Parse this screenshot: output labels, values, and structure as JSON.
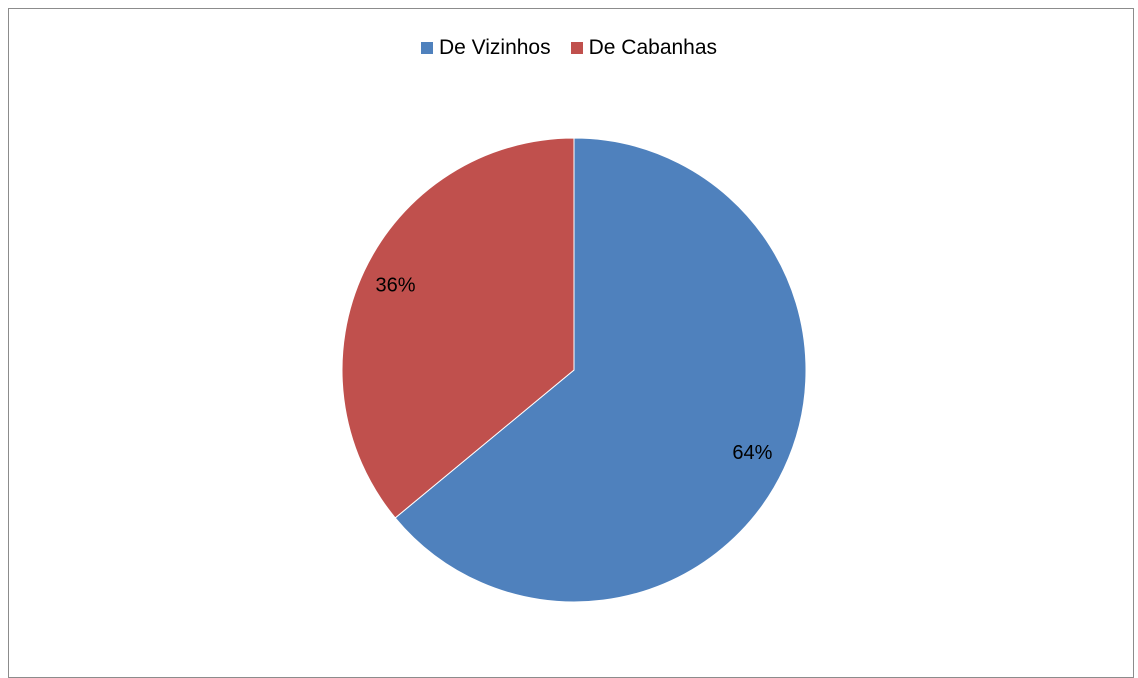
{
  "chart_data": {
    "type": "pie",
    "categories": [
      "De Vizinhos",
      "De Cabanhas"
    ],
    "values": [
      64,
      36
    ],
    "data_labels": [
      "64%",
      "36%"
    ],
    "colors": [
      "#4F81BD",
      "#C0504D"
    ],
    "legend_position": "top",
    "title": ""
  }
}
